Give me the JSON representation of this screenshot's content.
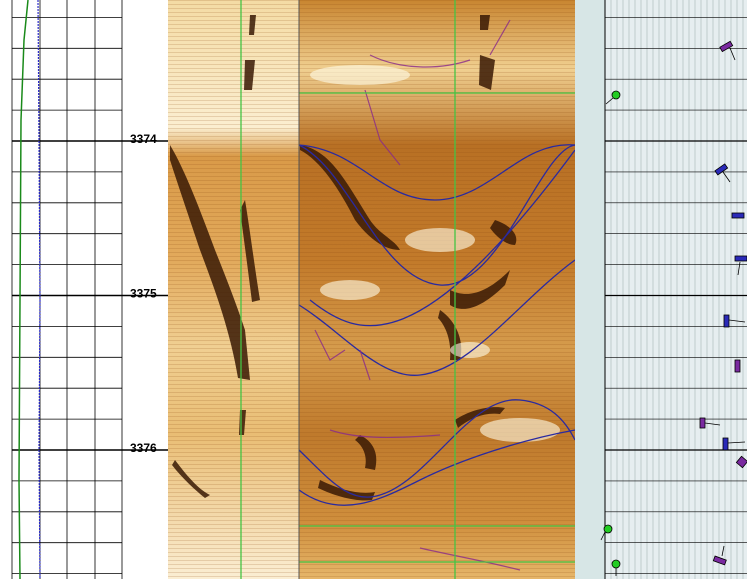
{
  "depth_track": {
    "labels": [
      3374,
      3375,
      3376
    ]
  }
}
